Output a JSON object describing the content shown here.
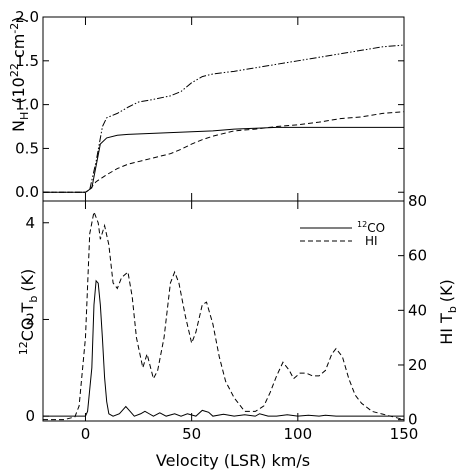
{
  "chart_data": [
    {
      "type": "line",
      "panel": "top",
      "xlim": [
        -20,
        150
      ],
      "ylim": [
        -0.1,
        2.0
      ],
      "xticks": [
        0,
        50,
        100,
        150
      ],
      "yticks": [
        "0.0",
        "0.5",
        "1.0",
        "1.5",
        "2.0"
      ],
      "ylabel": {
        "prefix": "N",
        "sub": "H",
        "unit": "(10",
        "exp": "22",
        "unit2": " cm",
        "exp2": "-2",
        "close": ")"
      },
      "grid": false,
      "series": [
        {
          "style": "solid",
          "x": [
            -20,
            0,
            3,
            5,
            7,
            10,
            15,
            20,
            30,
            40,
            50,
            60,
            70,
            80,
            90,
            100,
            110,
            120,
            130,
            140,
            150
          ],
          "y": [
            0,
            0,
            0.05,
            0.3,
            0.55,
            0.62,
            0.65,
            0.66,
            0.67,
            0.68,
            0.69,
            0.7,
            0.72,
            0.73,
            0.74,
            0.74,
            0.74,
            0.74,
            0.74,
            0.74,
            0.74
          ]
        },
        {
          "style": "dashed",
          "x": [
            -20,
            0,
            2,
            5,
            10,
            15,
            20,
            25,
            30,
            35,
            40,
            45,
            50,
            55,
            60,
            70,
            80,
            90,
            100,
            110,
            120,
            130,
            140,
            150
          ],
          "y": [
            0,
            0,
            0.03,
            0.12,
            0.2,
            0.27,
            0.32,
            0.35,
            0.38,
            0.41,
            0.44,
            0.49,
            0.55,
            0.6,
            0.64,
            0.7,
            0.72,
            0.75,
            0.77,
            0.8,
            0.84,
            0.86,
            0.9,
            0.92
          ]
        },
        {
          "style": "dash-dot-dot",
          "x": [
            -20,
            0,
            2,
            5,
            8,
            10,
            15,
            20,
            25,
            30,
            40,
            45,
            50,
            55,
            60,
            70,
            80,
            90,
            100,
            110,
            120,
            130,
            140,
            150
          ],
          "y": [
            0,
            0,
            0.03,
            0.35,
            0.75,
            0.85,
            0.9,
            0.97,
            1.03,
            1.05,
            1.1,
            1.15,
            1.25,
            1.32,
            1.35,
            1.38,
            1.42,
            1.46,
            1.5,
            1.54,
            1.58,
            1.62,
            1.66,
            1.68
          ]
        }
      ]
    },
    {
      "type": "line",
      "panel": "bottom",
      "xlim": [
        -20,
        150
      ],
      "ylim_left": [
        -0.1,
        4.45
      ],
      "ylim_right": [
        -0.5,
        80
      ],
      "xticks": [
        0,
        50,
        100,
        150
      ],
      "yticks_left": [
        0,
        2,
        4
      ],
      "yticks_right": [
        0,
        20,
        40,
        60,
        80
      ],
      "xlabel": "Velocity (LSR) km/s",
      "ylabel_left": {
        "sup": "12",
        "main": "CO T",
        "sub": "b",
        "unit": "(K)"
      },
      "ylabel_right": {
        "main": "HI T",
        "sub": "b",
        "unit": "(K)"
      },
      "legend_position": "top-right",
      "grid": false,
      "series": [
        {
          "name_sup": "12",
          "name": "CO",
          "style": "solid",
          "axis": "left",
          "x": [
            -20,
            -5,
            0,
            1,
            3,
            4,
            5,
            6,
            7,
            8,
            9,
            10,
            11,
            13,
            16,
            18,
            19,
            21,
            23,
            26,
            28,
            30,
            32,
            35,
            38,
            42,
            45,
            48,
            52,
            55,
            58,
            60,
            65,
            70,
            75,
            80,
            82,
            86,
            90,
            95,
            100,
            105,
            110,
            113,
            118,
            125,
            135,
            150
          ],
          "y": [
            0,
            0,
            0,
            0.1,
            1.0,
            2.3,
            2.8,
            2.75,
            2.3,
            1.6,
            0.8,
            0.3,
            0.05,
            0,
            0.05,
            0.15,
            0.2,
            0.1,
            0,
            0.05,
            0.1,
            0.05,
            0,
            0.07,
            0,
            0.05,
            0,
            0.05,
            0,
            0.12,
            0.08,
            0,
            0.04,
            0,
            0.03,
            0,
            0.05,
            0,
            0,
            0.03,
            0,
            0.02,
            0,
            0.02,
            0,
            0,
            0,
            0
          ]
        },
        {
          "name": "HI",
          "style": "dashed",
          "axis": "right",
          "x": [
            -20,
            -10,
            -5,
            -3,
            0,
            2,
            4,
            6,
            7,
            9,
            11,
            13,
            15,
            17,
            20,
            22,
            24,
            27,
            29,
            32,
            34,
            37,
            40,
            42,
            44,
            47,
            50,
            52,
            55,
            57,
            60,
            63,
            66,
            70,
            75,
            80,
            84,
            87,
            90,
            93,
            96,
            98,
            101,
            104,
            107,
            110,
            113,
            116,
            118,
            121,
            124,
            127,
            130,
            135,
            140,
            145,
            150
          ],
          "y": [
            0,
            0,
            1,
            5,
            30,
            68,
            76,
            72,
            66,
            71,
            64,
            50,
            48,
            52,
            54,
            45,
            30,
            19,
            24,
            15,
            18,
            30,
            50,
            54,
            50,
            38,
            28,
            32,
            42,
            43,
            35,
            23,
            14,
            8,
            3,
            3,
            5,
            10,
            16,
            21,
            18,
            15,
            17,
            17,
            16,
            16,
            18,
            24,
            26,
            23,
            15,
            9,
            6,
            3,
            2,
            1,
            0
          ]
        }
      ]
    }
  ]
}
